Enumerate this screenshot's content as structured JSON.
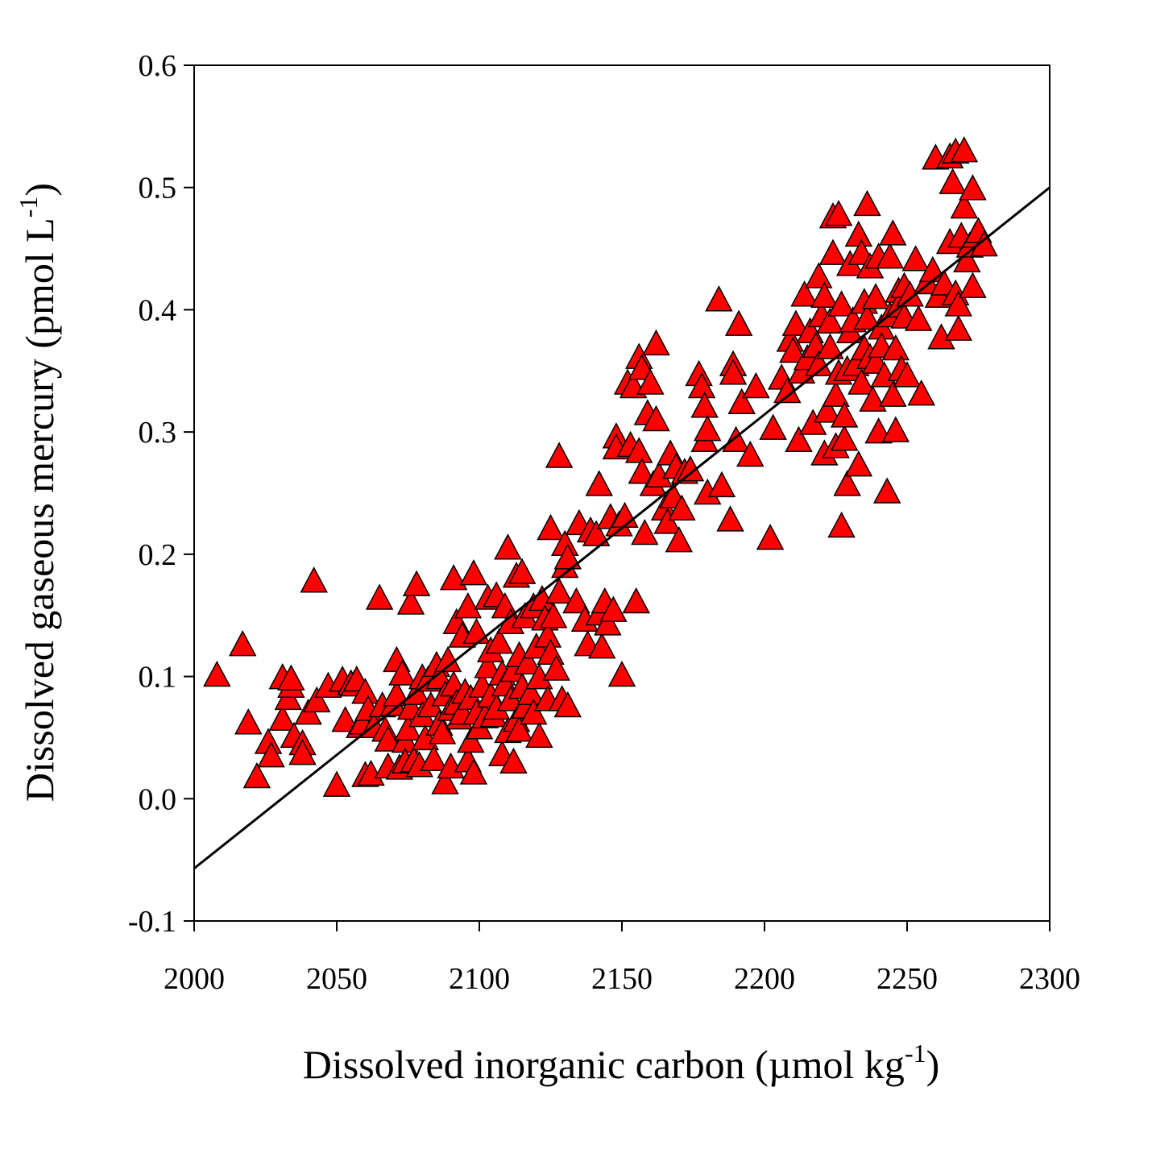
{
  "chart_data": {
    "type": "scatter",
    "xlabel": {
      "main": "Dissolved inorganic carbon (µmol kg",
      "sup": "-1",
      "tail": ")"
    },
    "ylabel": {
      "main": "Dissolved gaseous mercury (pmol L",
      "sup": "-1",
      "tail": ")"
    },
    "xlim": [
      2000,
      2300
    ],
    "ylim": [
      -0.1,
      0.6
    ],
    "xticks": [
      2000,
      2050,
      2100,
      2150,
      2200,
      2250,
      2300
    ],
    "xtick_labels": [
      "2000",
      "2050",
      "2100",
      "2150",
      "2200",
      "2250",
      "2300"
    ],
    "yticks": [
      -0.1,
      0.0,
      0.1,
      0.2,
      0.3,
      0.4,
      0.5,
      0.6
    ],
    "ytick_labels": [
      "-0.1",
      "0.0",
      "0.1",
      "0.2",
      "0.3",
      "0.4",
      "0.5",
      "0.6"
    ],
    "grid": false,
    "legend": "none",
    "marker": "triangle",
    "marker_color": "#ff0000",
    "marker_edge_color": "#000000",
    "fit_line": {
      "x": [
        2000,
        2300
      ],
      "y": [
        -0.057,
        0.5
      ],
      "color": "#000000"
    },
    "points": [
      [
        2008,
        0.102
      ],
      [
        2017,
        0.127
      ],
      [
        2019,
        0.063
      ],
      [
        2022,
        0.019
      ],
      [
        2026,
        0.047
      ],
      [
        2027,
        0.036
      ],
      [
        2031,
        0.1
      ],
      [
        2031,
        0.066
      ],
      [
        2033,
        0.083
      ],
      [
        2034,
        0.093
      ],
      [
        2034,
        0.099
      ],
      [
        2035,
        0.052
      ],
      [
        2038,
        0.046
      ],
      [
        2038,
        0.038
      ],
      [
        2040,
        0.071
      ],
      [
        2042,
        0.179
      ],
      [
        2043,
        0.081
      ],
      [
        2047,
        0.093
      ],
      [
        2050,
        0.012
      ],
      [
        2052,
        0.098
      ],
      [
        2053,
        0.065
      ],
      [
        2055,
        0.095
      ],
      [
        2056,
        0.094
      ],
      [
        2057,
        0.098
      ],
      [
        2058,
        0.06
      ],
      [
        2059,
        0.063
      ],
      [
        2060,
        0.02
      ],
      [
        2060,
        0.088
      ],
      [
        2061,
        0.074
      ],
      [
        2062,
        0.021
      ],
      [
        2063,
        0.06
      ],
      [
        2065,
        0.165
      ],
      [
        2066,
        0.077
      ],
      [
        2067,
        0.057
      ],
      [
        2068,
        0.049
      ],
      [
        2068,
        0.027
      ],
      [
        2070,
        0.078
      ],
      [
        2071,
        0.086
      ],
      [
        2071,
        0.114
      ],
      [
        2072,
        0.026
      ],
      [
        2073,
        0.103
      ],
      [
        2074,
        0.048
      ],
      [
        2074,
        0.031
      ],
      [
        2075,
        0.058
      ],
      [
        2076,
        0.161
      ],
      [
        2076,
        0.075
      ],
      [
        2077,
        0.032
      ],
      [
        2078,
        0.176
      ],
      [
        2078,
        0.087
      ],
      [
        2079,
        0.028
      ],
      [
        2080,
        0.1
      ],
      [
        2080,
        0.069
      ],
      [
        2081,
        0.05
      ],
      [
        2082,
        0.098
      ],
      [
        2083,
        0.077
      ],
      [
        2084,
        0.033
      ],
      [
        2085,
        0.11
      ],
      [
        2086,
        0.1
      ],
      [
        2086,
        0.062
      ],
      [
        2087,
        0.055
      ],
      [
        2088,
        0.014
      ],
      [
        2088,
        0.086
      ],
      [
        2089,
        0.114
      ],
      [
        2090,
        0.074
      ],
      [
        2090,
        0.027
      ],
      [
        2091,
        0.181
      ],
      [
        2091,
        0.094
      ],
      [
        2092,
        0.145
      ],
      [
        2092,
        0.079
      ],
      [
        2093,
        0.067
      ],
      [
        2094,
        0.134
      ],
      [
        2094,
        0.071
      ],
      [
        2095,
        0.088
      ],
      [
        2096,
        0.032
      ],
      [
        2096,
        0.158
      ],
      [
        2097,
        0.083
      ],
      [
        2097,
        0.048
      ],
      [
        2098,
        0.185
      ],
      [
        2098,
        0.022
      ],
      [
        2099,
        0.137
      ],
      [
        2099,
        0.071
      ],
      [
        2100,
        0.059
      ],
      [
        2101,
        0.093
      ],
      [
        2102,
        0.068
      ],
      [
        2103,
        0.165
      ],
      [
        2103,
        0.109
      ],
      [
        2104,
        0.085
      ],
      [
        2104,
        0.122
      ],
      [
        2105,
        0.069
      ],
      [
        2106,
        0.167
      ],
      [
        2106,
        0.075
      ],
      [
        2107,
        0.129
      ],
      [
        2108,
        0.103
      ],
      [
        2108,
        0.037
      ],
      [
        2109,
        0.158
      ],
      [
        2109,
        0.094
      ],
      [
        2110,
        0.206
      ],
      [
        2110,
        0.056
      ],
      [
        2111,
        0.145
      ],
      [
        2111,
        0.082
      ],
      [
        2112,
        0.106
      ],
      [
        2112,
        0.031
      ],
      [
        2113,
        0.183
      ],
      [
        2113,
        0.065
      ],
      [
        2114,
        0.118
      ],
      [
        2114,
        0.057
      ],
      [
        2115,
        0.186
      ],
      [
        2115,
        0.092
      ],
      [
        2116,
        0.15
      ],
      [
        2116,
        0.076
      ],
      [
        2117,
        0.112
      ],
      [
        2118,
        0.087
      ],
      [
        2119,
        0.158
      ],
      [
        2119,
        0.071
      ],
      [
        2120,
        0.125
      ],
      [
        2121,
        0.052
      ],
      [
        2121,
        0.1
      ],
      [
        2122,
        0.164
      ],
      [
        2123,
        0.148
      ],
      [
        2124,
        0.134
      ],
      [
        2124,
        0.082
      ],
      [
        2125,
        0.222
      ],
      [
        2125,
        0.12
      ],
      [
        2126,
        0.15
      ],
      [
        2127,
        0.107
      ],
      [
        2128,
        0.281
      ],
      [
        2128,
        0.17
      ],
      [
        2129,
        0.082
      ],
      [
        2130,
        0.209
      ],
      [
        2130,
        0.191
      ],
      [
        2131,
        0.198
      ],
      [
        2131,
        0.077
      ],
      [
        2134,
        0.162
      ],
      [
        2135,
        0.226
      ],
      [
        2137,
        0.147
      ],
      [
        2138,
        0.127
      ],
      [
        2139,
        0.22
      ],
      [
        2141,
        0.217
      ],
      [
        2142,
        0.152
      ],
      [
        2142,
        0.258
      ],
      [
        2143,
        0.125
      ],
      [
        2144,
        0.162
      ],
      [
        2145,
        0.144
      ],
      [
        2146,
        0.231
      ],
      [
        2147,
        0.155
      ],
      [
        2148,
        0.297
      ],
      [
        2148,
        0.288
      ],
      [
        2149,
        0.225
      ],
      [
        2150,
        0.102
      ],
      [
        2151,
        0.232
      ],
      [
        2152,
        0.341
      ],
      [
        2153,
        0.29
      ],
      [
        2154,
        0.338
      ],
      [
        2155,
        0.162
      ],
      [
        2156,
        0.285
      ],
      [
        2156,
        0.362
      ],
      [
        2157,
        0.353
      ],
      [
        2157,
        0.268
      ],
      [
        2158,
        0.218
      ],
      [
        2159,
        0.316
      ],
      [
        2160,
        0.341
      ],
      [
        2161,
        0.258
      ],
      [
        2162,
        0.373
      ],
      [
        2162,
        0.311
      ],
      [
        2163,
        0.265
      ],
      [
        2165,
        0.238
      ],
      [
        2166,
        0.227
      ],
      [
        2167,
        0.283
      ],
      [
        2168,
        0.248
      ],
      [
        2169,
        0.272
      ],
      [
        2170,
        0.212
      ],
      [
        2171,
        0.238
      ],
      [
        2172,
        0.268
      ],
      [
        2174,
        0.27
      ],
      [
        2177,
        0.348
      ],
      [
        2178,
        0.338
      ],
      [
        2179,
        0.322
      ],
      [
        2179,
        0.294
      ],
      [
        2180,
        0.251
      ],
      [
        2180,
        0.303
      ],
      [
        2184,
        0.409
      ],
      [
        2185,
        0.257
      ],
      [
        2188,
        0.229
      ],
      [
        2189,
        0.356
      ],
      [
        2189,
        0.349
      ],
      [
        2190,
        0.294
      ],
      [
        2191,
        0.389
      ],
      [
        2192,
        0.325
      ],
      [
        2195,
        0.282
      ],
      [
        2197,
        0.338
      ],
      [
        2202,
        0.214
      ],
      [
        2203,
        0.304
      ],
      [
        2206,
        0.345
      ],
      [
        2208,
        0.334
      ],
      [
        2209,
        0.376
      ],
      [
        2210,
        0.367
      ],
      [
        2211,
        0.389
      ],
      [
        2212,
        0.294
      ],
      [
        2213,
        0.35
      ],
      [
        2214,
        0.413
      ],
      [
        2215,
        0.361
      ],
      [
        2216,
        0.383
      ],
      [
        2217,
        0.308
      ],
      [
        2218,
        0.371
      ],
      [
        2219,
        0.428
      ],
      [
        2219,
        0.356
      ],
      [
        2220,
        0.396
      ],
      [
        2221,
        0.283
      ],
      [
        2221,
        0.412
      ],
      [
        2222,
        0.318
      ],
      [
        2223,
        0.37
      ],
      [
        2223,
        0.391
      ],
      [
        2224,
        0.447
      ],
      [
        2224,
        0.477
      ],
      [
        2225,
        0.331
      ],
      [
        2225,
        0.289
      ],
      [
        2226,
        0.479
      ],
      [
        2226,
        0.349
      ],
      [
        2227,
        0.405
      ],
      [
        2227,
        0.224
      ],
      [
        2228,
        0.295
      ],
      [
        2228,
        0.314
      ],
      [
        2229,
        0.352
      ],
      [
        2229,
        0.258
      ],
      [
        2230,
        0.438
      ],
      [
        2230,
        0.383
      ],
      [
        2231,
        0.392
      ],
      [
        2232,
        0.356
      ],
      [
        2233,
        0.462
      ],
      [
        2233,
        0.274
      ],
      [
        2234,
        0.447
      ],
      [
        2234,
        0.341
      ],
      [
        2235,
        0.369
      ],
      [
        2235,
        0.407
      ],
      [
        2236,
        0.487
      ],
      [
        2236,
        0.394
      ],
      [
        2237,
        0.436
      ],
      [
        2237,
        0.362
      ],
      [
        2238,
        0.327
      ],
      [
        2239,
        0.358
      ],
      [
        2239,
        0.411
      ],
      [
        2240,
        0.444
      ],
      [
        2240,
        0.301
      ],
      [
        2241,
        0.386
      ],
      [
        2241,
        0.371
      ],
      [
        2242,
        0.347
      ],
      [
        2243,
        0.252
      ],
      [
        2244,
        0.444
      ],
      [
        2244,
        0.396
      ],
      [
        2245,
        0.463
      ],
      [
        2245,
        0.331
      ],
      [
        2246,
        0.369
      ],
      [
        2246,
        0.302
      ],
      [
        2247,
        0.416
      ],
      [
        2247,
        0.404
      ],
      [
        2248,
        0.352
      ],
      [
        2249,
        0.42
      ],
      [
        2249,
        0.395
      ],
      [
        2250,
        0.347
      ],
      [
        2251,
        0.413
      ],
      [
        2253,
        0.442
      ],
      [
        2254,
        0.393
      ],
      [
        2255,
        0.332
      ],
      [
        2257,
        0.423
      ],
      [
        2259,
        0.433
      ],
      [
        2260,
        0.525
      ],
      [
        2261,
        0.412
      ],
      [
        2262,
        0.378
      ],
      [
        2263,
        0.422
      ],
      [
        2265,
        0.526
      ],
      [
        2265,
        0.456
      ],
      [
        2266,
        0.505
      ],
      [
        2267,
        0.53
      ],
      [
        2267,
        0.414
      ],
      [
        2268,
        0.385
      ],
      [
        2268,
        0.405
      ],
      [
        2269,
        0.461
      ],
      [
        2270,
        0.531
      ],
      [
        2270,
        0.485
      ],
      [
        2271,
        0.441
      ],
      [
        2272,
        0.453
      ],
      [
        2273,
        0.5
      ],
      [
        2273,
        0.42
      ],
      [
        2274,
        0.461
      ],
      [
        2275,
        0.465
      ],
      [
        2277,
        0.454
      ]
    ]
  }
}
